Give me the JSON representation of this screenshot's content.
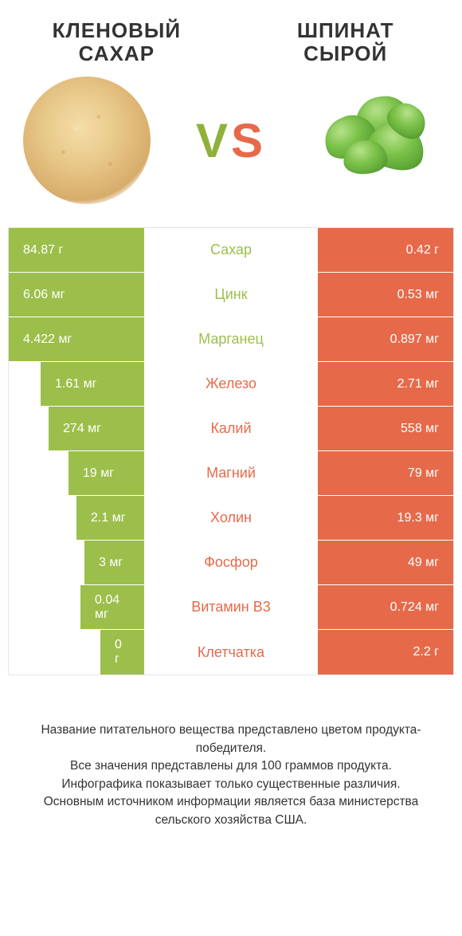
{
  "colors": {
    "green": "#9cbf4b",
    "orange": "#e66a4a",
    "text": "#333333",
    "white": "#ffffff",
    "border": "#e5e5e5"
  },
  "header": {
    "left_title_line1": "КЛЕНОВЫЙ",
    "left_title_line2": "САХАР",
    "right_title_line1": "ШПИНАТ",
    "right_title_line2": "СЫРОЙ",
    "vs_v": "V",
    "vs_s": "S"
  },
  "table": {
    "left_bar_full_width": 170,
    "right_bar_full_width": 170,
    "rows": [
      {
        "label": "Сахар",
        "left_val": "84.87 г",
        "right_val": "0.42 г",
        "winner": "left",
        "left_w": 170,
        "right_w": 170
      },
      {
        "label": "Цинк",
        "left_val": "6.06 мг",
        "right_val": "0.53 мг",
        "winner": "left",
        "left_w": 170,
        "right_w": 170
      },
      {
        "label": "Марганец",
        "left_val": "4.422 мг",
        "right_val": "0.897 мг",
        "winner": "left",
        "left_w": 170,
        "right_w": 170
      },
      {
        "label": "Железо",
        "left_val": "1.61 мг",
        "right_val": "2.71 мг",
        "winner": "right",
        "left_w": 130,
        "right_w": 170
      },
      {
        "label": "Калий",
        "left_val": "274 мг",
        "right_val": "558 мг",
        "winner": "right",
        "left_w": 120,
        "right_w": 170
      },
      {
        "label": "Магний",
        "left_val": "19 мг",
        "right_val": "79 мг",
        "winner": "right",
        "left_w": 95,
        "right_w": 170
      },
      {
        "label": "Холин",
        "left_val": "2.1 мг",
        "right_val": "19.3 мг",
        "winner": "right",
        "left_w": 85,
        "right_w": 170
      },
      {
        "label": "Фосфор",
        "left_val": "3 мг",
        "right_val": "49 мг",
        "winner": "right",
        "left_w": 75,
        "right_w": 170
      },
      {
        "label": "Витамин B3",
        "left_val": "0.04 мг",
        "right_val": "0.724 мг",
        "winner": "right",
        "left_w": 80,
        "right_w": 170
      },
      {
        "label": "Клетчатка",
        "left_val": "0 г",
        "right_val": "2.2 г",
        "winner": "right",
        "left_w": 55,
        "right_w": 170
      }
    ]
  },
  "footer": {
    "line1": "Название питательного вещества представлено цветом продукта-победителя.",
    "line2": "Все значения представлены для 100 граммов продукта.",
    "line3": "Инфографика показывает только существенные различия.",
    "line4": "Основным источником информации является база министерства сельского хозяйства США."
  }
}
